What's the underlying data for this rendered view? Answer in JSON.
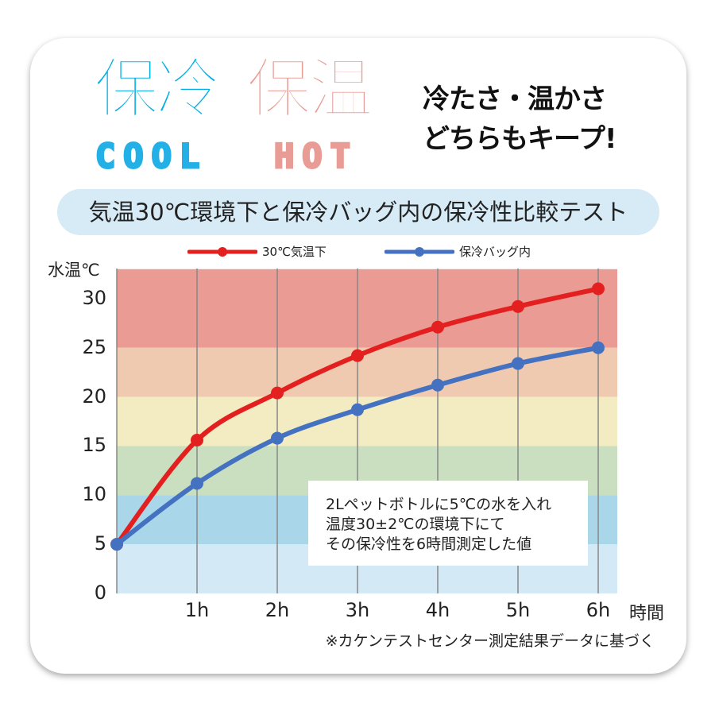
{
  "header": {
    "logo_cool_kanji": "保冷",
    "logo_hot_kanji": "保温",
    "logo_cool_text": "COOL",
    "logo_hot_text": "HOT",
    "slogan_line1": "冷たさ・温かさ",
    "slogan_line2": "どちらもキープ!",
    "colors": {
      "cool": "#00aee6",
      "hot": "#e99c95"
    }
  },
  "chart_data": {
    "type": "line",
    "title": "気温30℃環境下と保冷バッグ内の保冷性比較テスト",
    "ylabel": "水温℃",
    "xlabel": "時間",
    "x": [
      "",
      "1h",
      "2h",
      "3h",
      "4h",
      "5h",
      "6h"
    ],
    "y_ticks": [
      "0",
      "5",
      "10",
      "15",
      "20",
      "25",
      "30"
    ],
    "ylim": [
      0,
      33
    ],
    "grid": "vertical",
    "legend": "top",
    "series": [
      {
        "name": "30℃気温下",
        "color": "#e3201f",
        "values": [
          5,
          15.6,
          20.4,
          24.2,
          27.1,
          29.2,
          31.0
        ]
      },
      {
        "name": "保冷バッグ内",
        "color": "#4472c0",
        "values": [
          5,
          11.2,
          15.8,
          18.7,
          21.2,
          23.4,
          25.0
        ]
      }
    ],
    "bands": [
      {
        "from": 25,
        "to": 33,
        "color": "#e99b94"
      },
      {
        "from": 20,
        "to": 25,
        "color": "#efcab0"
      },
      {
        "from": 15,
        "to": 20,
        "color": "#f3ecc3"
      },
      {
        "from": 10,
        "to": 15,
        "color": "#cadfbf"
      },
      {
        "from": 5,
        "to": 10,
        "color": "#a9d6e9"
      },
      {
        "from": 0,
        "to": 5,
        "color": "#d3e9f5"
      }
    ],
    "annotation": [
      "2Lペットボトルに5℃の水を入れ",
      "温度30±2℃の環境下にて",
      "その保冷性を6時間測定した値"
    ],
    "footnote": "※カケンテストセンター測定結果データに基づく"
  }
}
